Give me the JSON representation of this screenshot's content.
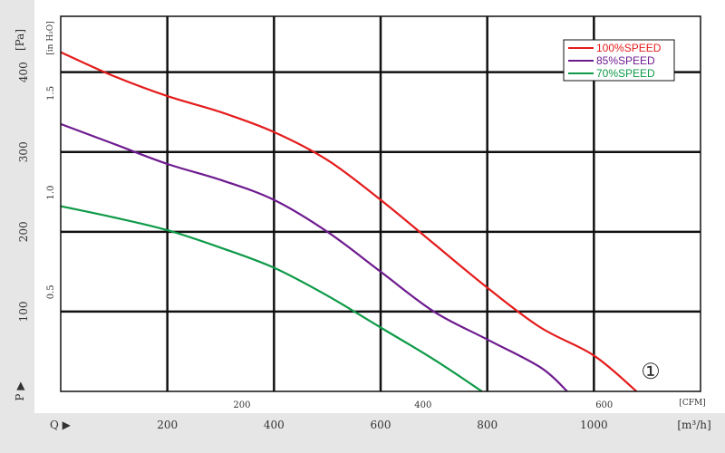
{
  "chart_data": {
    "type": "line",
    "title": "",
    "y_axis_left": {
      "symbol": "P ▶",
      "unit": "[Pa]",
      "ticks": [
        "100",
        "200",
        "300",
        "400"
      ],
      "range": [
        0,
        470
      ]
    },
    "y_axis_inner": {
      "unit": "[in H₂O]",
      "ticks": [
        "0.5",
        "1.0",
        "1.5"
      ]
    },
    "x_axis_bottom": {
      "symbol": "Q ▶",
      "unit": "[m³/h]",
      "ticks": [
        "200",
        "400",
        "600",
        "800",
        "1000"
      ],
      "range": [
        0,
        1200
      ]
    },
    "x_axis_inner": {
      "unit": "[CFM]",
      "ticks": [
        "200",
        "400",
        "600"
      ]
    },
    "grid": true,
    "legend_position": "top-right",
    "marker": "①",
    "colors": {
      "red": "#e41b1b",
      "purple": "#6e1a8f",
      "green": "#0e9a48",
      "grid": "#111111"
    },
    "series": [
      {
        "name": "100%SPEED",
        "color": "#e41b1b",
        "x": [
          0,
          100,
          200,
          300,
          400,
          500,
          600,
          700,
          800,
          900,
          1000,
          1080
        ],
        "y": [
          425,
          395,
          370,
          350,
          325,
          290,
          240,
          185,
          130,
          80,
          45,
          0
        ]
      },
      {
        "name": "85%SPEED",
        "color": "#6e1a8f",
        "x": [
          0,
          100,
          200,
          300,
          400,
          500,
          600,
          700,
          800,
          900,
          950
        ],
        "y": [
          335,
          310,
          285,
          265,
          240,
          200,
          150,
          100,
          65,
          30,
          0
        ]
      },
      {
        "name": "70%SPEED",
        "color": "#0e9a48",
        "x": [
          0,
          100,
          200,
          300,
          400,
          500,
          600,
          700,
          790
        ],
        "y": [
          232,
          218,
          202,
          180,
          155,
          120,
          80,
          40,
          0
        ]
      }
    ]
  }
}
